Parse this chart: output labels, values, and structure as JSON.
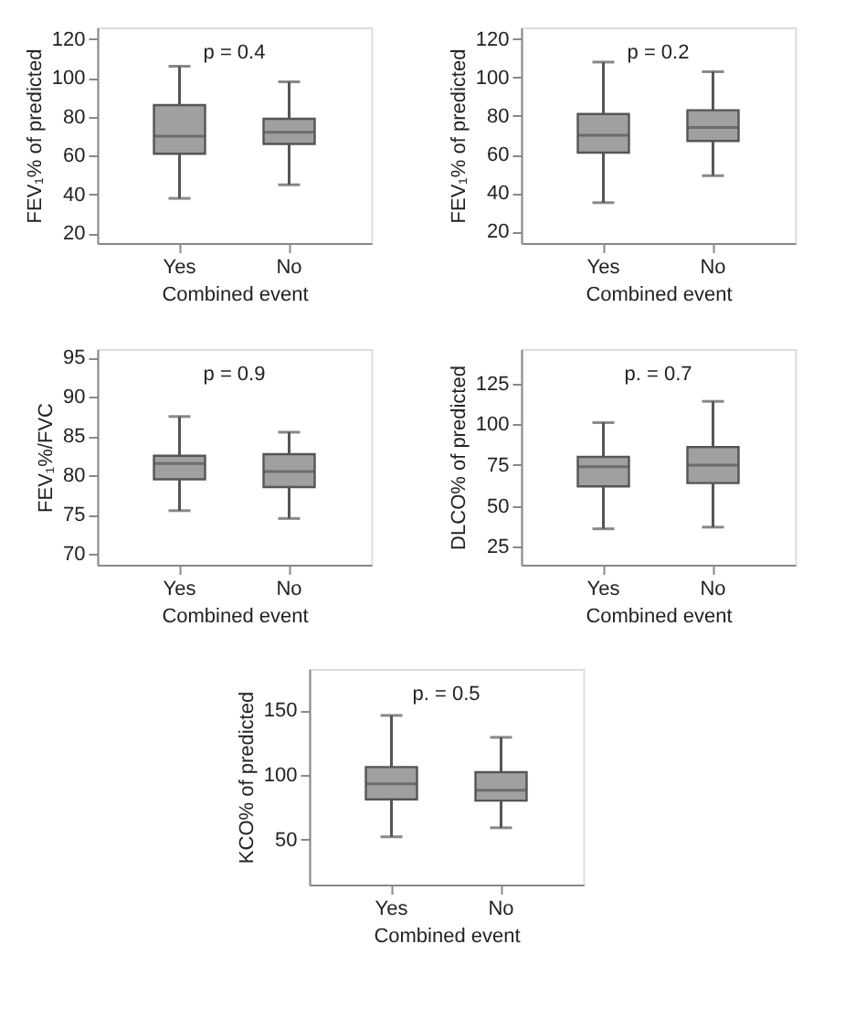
{
  "chart_data": [
    {
      "type": "box",
      "categories": [
        "Yes",
        "No"
      ],
      "xlabel": "Combined event",
      "ylabel": "FEV₁% of predicted",
      "annotations": [
        "p = 0.4"
      ],
      "ylim": [
        15,
        126
      ],
      "yticks": [
        20,
        40,
        60,
        80,
        100,
        120
      ],
      "grid": false,
      "color": "#a0a0a0",
      "boxes": [
        {
          "low": 38,
          "q1": 61,
          "median": 70,
          "q3": 86,
          "high": 106
        },
        {
          "low": 45,
          "q1": 66,
          "median": 72,
          "q3": 79,
          "high": 98
        }
      ]
    },
    {
      "type": "box",
      "categories": [
        "Yes",
        "No"
      ],
      "xlabel": "Combined event",
      "ylabel": "FEV₁% of predicted",
      "annotations": [
        "p = 0.2"
      ],
      "ylim": [
        14,
        126
      ],
      "yticks": [
        20,
        40,
        60,
        80,
        100,
        120
      ],
      "grid": false,
      "color": "#a0a0a0",
      "boxes": [
        {
          "low": 35,
          "q1": 61,
          "median": 70,
          "q3": 81,
          "high": 108
        },
        {
          "low": 49,
          "q1": 67,
          "median": 74,
          "q3": 83,
          "high": 103
        }
      ]
    },
    {
      "type": "box",
      "categories": [
        "Yes",
        "No"
      ],
      "xlabel": "Combined event",
      "ylabel": "FEV₁%/FVC",
      "annotations": [
        "p = 0.9"
      ],
      "ylim": [
        68.6,
        96.1
      ],
      "yticks": [
        70,
        75,
        80,
        85,
        90,
        95
      ],
      "grid": false,
      "color": "#a0a0a0",
      "boxes": [
        {
          "low": 75.5,
          "q1": 79.5,
          "median": 81.5,
          "q3": 82.5,
          "high": 87.5
        },
        {
          "low": 74.5,
          "q1": 78.5,
          "median": 80.5,
          "q3": 82.7,
          "high": 85.5
        }
      ]
    },
    {
      "type": "box",
      "categories": [
        "Yes",
        "No"
      ],
      "xlabel": "Combined event",
      "ylabel": "DLCO% of predicted",
      "annotations": [
        "p. = 0.7"
      ],
      "ylim": [
        14,
        146
      ],
      "yticks": [
        25,
        50,
        75,
        100,
        125
      ],
      "grid": false,
      "color": "#a0a0a0",
      "boxes": [
        {
          "low": 36,
          "q1": 62,
          "median": 74,
          "q3": 80,
          "high": 101
        },
        {
          "low": 37,
          "q1": 64,
          "median": 75,
          "q3": 86,
          "high": 114
        }
      ]
    },
    {
      "type": "box",
      "categories": [
        "Yes",
        "No"
      ],
      "xlabel": "Combined event",
      "ylabel": "KCO% of predicted",
      "annotations": [
        "p. = 0.5"
      ],
      "ylim": [
        15,
        182
      ],
      "yticks": [
        50,
        100,
        150
      ],
      "grid": false,
      "color": "#a0a0a0",
      "boxes": [
        {
          "low": 52,
          "q1": 81,
          "median": 93,
          "q3": 106,
          "high": 146
        },
        {
          "low": 59,
          "q1": 80,
          "median": 88,
          "q3": 102,
          "high": 129
        }
      ]
    }
  ]
}
